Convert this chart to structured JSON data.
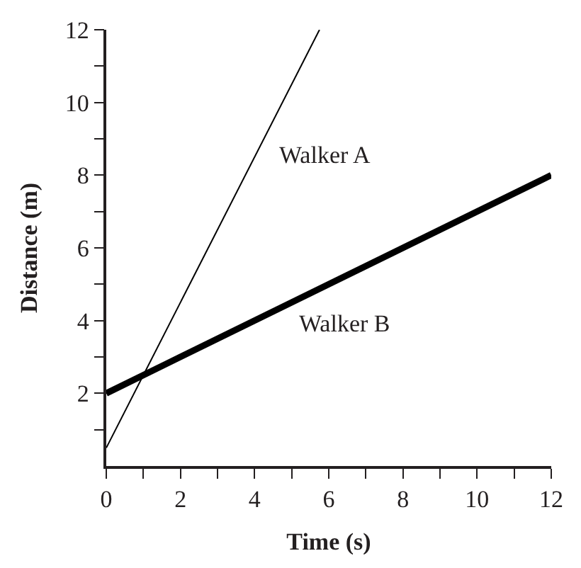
{
  "chart_data": {
    "type": "line",
    "xlabel": "Time (s)",
    "ylabel": "Distance (m)",
    "series": [
      {
        "name": "Walker A",
        "color": "#000000",
        "x": [
          0,
          5.75
        ],
        "values": [
          0.5,
          12
        ]
      },
      {
        "name": "Walker B",
        "color": "#000000",
        "x": [
          0,
          12
        ],
        "values": [
          2,
          8
        ]
      }
    ],
    "xlim": [
      0,
      12
    ],
    "ylim": [
      0,
      12
    ],
    "xticks": [
      0,
      {
        "value": 1,
        "label": null
      },
      2,
      {
        "value": 3,
        "label": null
      },
      4,
      {
        "value": 5,
        "label": null
      },
      6,
      {
        "value": 7,
        "label": null
      },
      8,
      {
        "value": 9,
        "label": null
      },
      10,
      {
        "value": 11,
        "label": null
      },
      12
    ],
    "yticks": [
      {
        "value": 1,
        "label": null
      },
      2,
      {
        "value": 3,
        "label": null
      },
      4,
      {
        "value": 5,
        "label": null
      },
      6,
      {
        "value": 7,
        "label": null
      },
      8,
      {
        "value": 9,
        "label": null
      },
      10,
      {
        "value": 11,
        "label": null
      },
      12
    ],
    "legend": false,
    "marker": "none",
    "line_style": "solid"
  }
}
